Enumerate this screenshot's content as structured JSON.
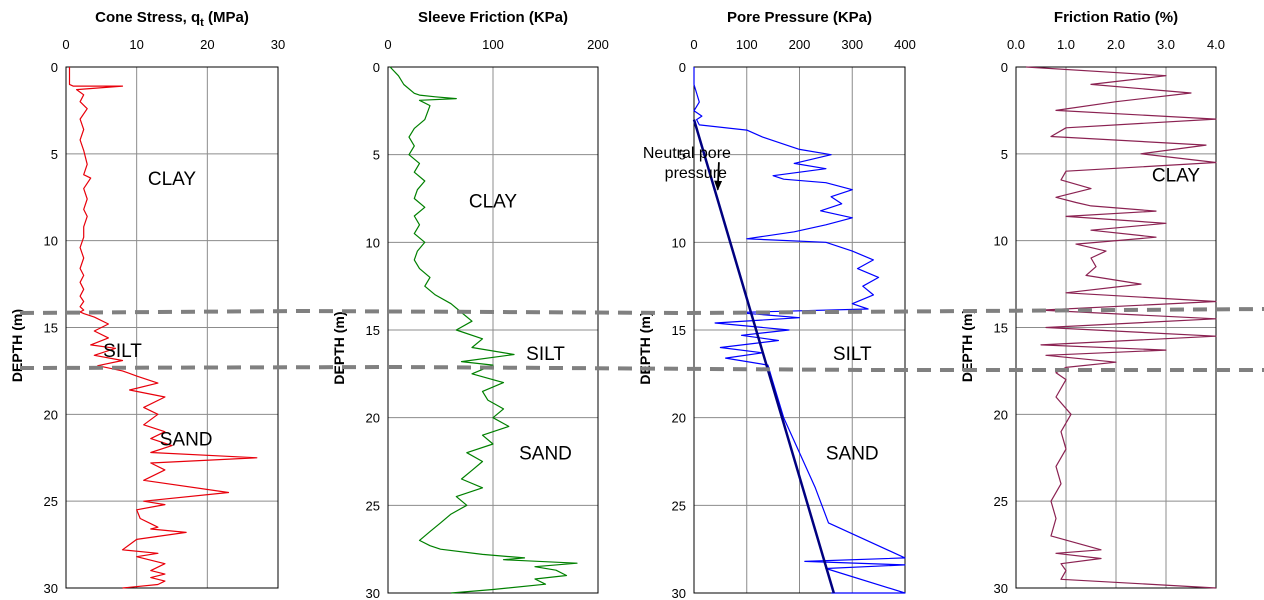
{
  "chart_data": [
    {
      "type": "line",
      "title": "Cone Stress, q",
      "title_sub": "t",
      "title_unit": "(MPa)",
      "ylabel": "DEPTH  (m)",
      "xlim": [
        0,
        30
      ],
      "xticks": [
        "0",
        "10",
        "20",
        "30"
      ],
      "ylim": [
        0,
        30
      ],
      "yticks": [
        "0",
        "5",
        "10",
        "15",
        "20",
        "25",
        "30"
      ],
      "y_inverted": true,
      "color": "#e8000b",
      "labels": [
        {
          "text": "CLAY",
          "x": 15,
          "y": 6.4
        },
        {
          "text": "SILT",
          "x": 8,
          "y": 16.3
        },
        {
          "text": "SAND",
          "x": 17,
          "y": 21.4
        }
      ],
      "series": [
        {
          "x": [
            0.5,
            0.5,
            1,
            8,
            1.5,
            2.5,
            2,
            3,
            2,
            2.5,
            2,
            2.5,
            3,
            2.5,
            3.5,
            2.5,
            3,
            2.5,
            3,
            2.5,
            2.5,
            2,
            2.5,
            2,
            2.5,
            2,
            2.5,
            2,
            2.5,
            2,
            2.5,
            2,
            2.5,
            4,
            6,
            4,
            6,
            3.5,
            7,
            4,
            8,
            4.5,
            8,
            10,
            13,
            9,
            14,
            11,
            13,
            11,
            14,
            12,
            15,
            12,
            27,
            12,
            14,
            11,
            23,
            11,
            14,
            10,
            10.5,
            12,
            13,
            12,
            17,
            10,
            8,
            13,
            10,
            12,
            14,
            12,
            14,
            12,
            14,
            13,
            8
          ],
          "y": [
            0,
            1.0,
            1.1,
            1.1,
            1.3,
            1.6,
            2.0,
            2.4,
            3.0,
            3.6,
            4.2,
            4.8,
            5.6,
            6.2,
            6.4,
            7.0,
            7.6,
            8.2,
            8.6,
            9.2,
            9.8,
            10.4,
            11.0,
            11.6,
            12.0,
            12.4,
            12.8,
            13.2,
            13.5,
            13.8,
            14.0,
            14.1,
            14.2,
            14.4,
            14.8,
            15.2,
            15.6,
            16.0,
            16.2,
            16.6,
            16.9,
            17.2,
            17.5,
            17.8,
            18.2,
            18.6,
            19.0,
            19.6,
            20.0,
            20.6,
            21.0,
            21.4,
            21.8,
            22.2,
            22.5,
            22.8,
            23.2,
            23.8,
            24.5,
            25.0,
            25.2,
            25.5,
            26.0,
            26.3,
            26.5,
            26.6,
            26.8,
            27.2,
            27.8,
            28.0,
            28.2,
            28.4,
            28.6,
            29.0,
            29.2,
            29.4,
            29.6,
            29.8,
            30.0
          ]
        }
      ]
    },
    {
      "type": "line",
      "title": "Sleeve Friction  (KPa)",
      "ylabel": "DEPTH  (m)",
      "xlim": [
        0,
        200
      ],
      "xticks": [
        "0",
        "100",
        "200"
      ],
      "ylim": [
        0,
        30
      ],
      "yticks": [
        "0",
        "5",
        "10",
        "15",
        "20",
        "25",
        "30"
      ],
      "y_inverted": true,
      "color": "#008000",
      "labels": [
        {
          "text": "CLAY",
          "x": 100,
          "y": 7.6
        },
        {
          "text": "SILT",
          "x": 150,
          "y": 16.3
        },
        {
          "text": "SAND",
          "x": 150,
          "y": 22.0
        }
      ],
      "series": [
        {
          "x": [
            2,
            10,
            15,
            25,
            30,
            45,
            65,
            30,
            40,
            35,
            25,
            20,
            25,
            20,
            30,
            25,
            35,
            28,
            25,
            35,
            25,
            30,
            25,
            35,
            28,
            25,
            30,
            40,
            35,
            45,
            60,
            70,
            80,
            65,
            90,
            80,
            120,
            70,
            100,
            80,
            110,
            90,
            95,
            110,
            100,
            115,
            90,
            100,
            75,
            90,
            80,
            70,
            90,
            65,
            75,
            60,
            50,
            40,
            30,
            40,
            50,
            90,
            130,
            110,
            180,
            140,
            160,
            170,
            140,
            150,
            100,
            60
          ],
          "y": [
            0,
            0.5,
            1.0,
            1.5,
            1.6,
            1.7,
            1.8,
            1.9,
            2.2,
            3.0,
            3.5,
            4.0,
            4.5,
            5.0,
            5.5,
            6.0,
            6.5,
            7.0,
            7.5,
            8.0,
            8.5,
            9.0,
            9.5,
            10.0,
            10.5,
            11.0,
            11.5,
            12.0,
            12.5,
            13.0,
            13.5,
            14.0,
            14.5,
            15.0,
            15.5,
            16.0,
            16.4,
            16.8,
            17.0,
            17.5,
            18.0,
            18.5,
            19.0,
            19.5,
            20.0,
            20.5,
            21.0,
            21.5,
            22.0,
            22.5,
            23.0,
            23.5,
            24.0,
            24.5,
            25.0,
            25.5,
            26.0,
            26.5,
            27.0,
            27.3,
            27.5,
            27.8,
            28.0,
            28.1,
            28.3,
            28.5,
            28.7,
            29.0,
            29.2,
            29.5,
            29.8,
            30.0
          ]
        }
      ]
    },
    {
      "type": "line",
      "title": "Pore Pressure (KPa)",
      "ylabel": "DEPTH  (m)",
      "xlim": [
        0,
        400
      ],
      "xticks": [
        "0",
        "100",
        "200",
        "300",
        "400"
      ],
      "ylim": [
        0,
        30
      ],
      "yticks": [
        "0",
        "5",
        "10",
        "15",
        "20",
        "25",
        "30"
      ],
      "y_inverted": true,
      "color": "#0000ff",
      "neutral_color": "#000080",
      "labels": [
        {
          "text": "SILT",
          "x": 300,
          "y": 16.3
        },
        {
          "text": "SAND",
          "x": 300,
          "y": 22.0
        }
      ],
      "annotation": {
        "lines": [
          "Neutral pore",
          "pressure"
        ],
        "text_x": 70,
        "text_y": 5.2,
        "arrow_to_x": 45,
        "arrow_to_y": 7.0
      },
      "series": [
        {
          "x": [
            0,
            0,
            10,
            0,
            15,
            5,
            10,
            100,
            130,
            180,
            200,
            260,
            190,
            250,
            200,
            150,
            170,
            250,
            300,
            260,
            280,
            240,
            300,
            250,
            190,
            100,
            250,
            300,
            340,
            310,
            350,
            320,
            340,
            300,
            330,
            80,
            200,
            40,
            180,
            90,
            160,
            50,
            130,
            60,
            140,
            150,
            170,
            200,
            230,
            255,
            400,
            210,
            400,
            250,
            400,
            260
          ],
          "y": [
            0,
            1.0,
            2.0,
            2.5,
            2.8,
            3.0,
            3.3,
            3.6,
            4.0,
            4.5,
            4.7,
            5.0,
            5.5,
            5.8,
            6.0,
            6.2,
            6.4,
            6.6,
            7.0,
            7.4,
            7.8,
            8.2,
            8.6,
            9.0,
            9.4,
            9.8,
            10.0,
            10.5,
            11.0,
            11.5,
            12.0,
            12.5,
            13.0,
            13.5,
            13.8,
            14.0,
            14.3,
            14.6,
            15.0,
            15.3,
            15.6,
            16.0,
            16.3,
            16.6,
            17.0,
            18.0,
            20.0,
            22.0,
            24.0,
            26.0,
            28.0,
            28.2,
            28.4,
            28.6,
            30.0,
            30.0
          ]
        },
        {
          "name": "Neutral pore pressure",
          "x": [
            0,
            265
          ],
          "y": [
            3.0,
            30.0
          ]
        }
      ]
    },
    {
      "type": "line",
      "title": "Friction Ratio  (%)",
      "ylabel": "DEPTH  (m)",
      "xlim": [
        0,
        4
      ],
      "xticks": [
        "0.0",
        "1.0",
        "2.0",
        "3.0",
        "4.0"
      ],
      "ylim": [
        0,
        30
      ],
      "yticks": [
        "0",
        "5",
        "10",
        "15",
        "20",
        "25",
        "30"
      ],
      "y_inverted": true,
      "color": "#8b2252",
      "labels": [
        {
          "text": "CLAY",
          "x": 3.2,
          "y": 6.2
        }
      ],
      "series": [
        {
          "x": [
            0.2,
            3.0,
            1.5,
            3.5,
            2.0,
            0.8,
            4.0,
            1.0,
            0.7,
            3.8,
            2.5,
            4.0,
            1.0,
            0.9,
            1.5,
            0.8,
            1.2,
            1.5,
            2.8,
            1.0,
            3.0,
            1.5,
            2.8,
            1.2,
            1.8,
            1.5,
            1.6,
            1.4,
            2.5,
            1.0,
            4.0,
            0.5,
            4.0,
            0.6,
            4.0,
            0.5,
            3.0,
            0.6,
            2.0,
            1.0,
            0.8,
            1.0,
            0.8,
            1.1,
            0.9,
            1.0,
            0.8,
            0.9,
            0.7,
            0.8,
            0.7,
            1.7,
            0.8,
            1.7,
            0.9,
            1.0,
            0.9,
            4.0
          ],
          "y": [
            0,
            0.5,
            1.0,
            1.5,
            2.0,
            2.5,
            3.0,
            3.5,
            4.0,
            4.5,
            5.0,
            5.5,
            6.0,
            6.5,
            7.0,
            7.5,
            7.8,
            8.0,
            8.3,
            8.6,
            9.0,
            9.4,
            9.8,
            10.2,
            10.6,
            11.0,
            11.5,
            12.0,
            12.5,
            13.0,
            13.5,
            14.0,
            14.5,
            15.0,
            15.5,
            16.0,
            16.3,
            16.6,
            17.0,
            17.3,
            17.6,
            18.0,
            19.0,
            20.0,
            21.0,
            22.0,
            23.0,
            24.0,
            25.0,
            26.0,
            27.0,
            27.8,
            28.0,
            28.3,
            28.6,
            29.0,
            29.5,
            30.0
          ]
        }
      ]
    }
  ]
}
